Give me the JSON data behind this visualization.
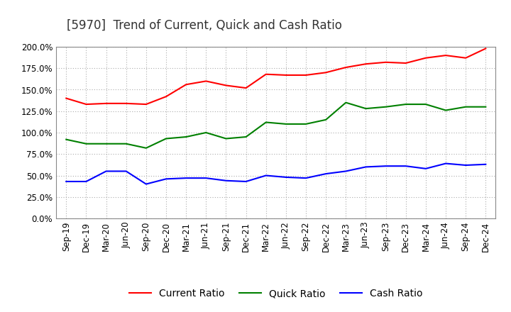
{
  "title": "[5970]  Trend of Current, Quick and Cash Ratio",
  "x_labels": [
    "Sep-19",
    "Dec-19",
    "Mar-20",
    "Jun-20",
    "Sep-20",
    "Dec-20",
    "Mar-21",
    "Jun-21",
    "Sep-21",
    "Dec-21",
    "Mar-22",
    "Jun-22",
    "Sep-22",
    "Dec-22",
    "Mar-23",
    "Jun-23",
    "Sep-23",
    "Dec-23",
    "Mar-24",
    "Jun-24",
    "Sep-24",
    "Dec-24"
  ],
  "current_ratio": [
    1.4,
    1.33,
    1.34,
    1.34,
    1.33,
    1.42,
    1.56,
    1.6,
    1.55,
    1.52,
    1.68,
    1.67,
    1.67,
    1.7,
    1.76,
    1.8,
    1.82,
    1.81,
    1.87,
    1.9,
    1.87,
    1.98
  ],
  "quick_ratio": [
    0.92,
    0.87,
    0.87,
    0.87,
    0.82,
    0.93,
    0.95,
    1.0,
    0.93,
    0.95,
    1.12,
    1.1,
    1.1,
    1.15,
    1.35,
    1.28,
    1.3,
    1.33,
    1.33,
    1.26,
    1.3,
    1.3
  ],
  "cash_ratio": [
    0.43,
    0.43,
    0.55,
    0.55,
    0.4,
    0.46,
    0.47,
    0.47,
    0.44,
    0.43,
    0.5,
    0.48,
    0.47,
    0.52,
    0.55,
    0.6,
    0.61,
    0.61,
    0.58,
    0.64,
    0.62,
    0.63
  ],
  "current_color": "#FF0000",
  "quick_color": "#008000",
  "cash_color": "#0000FF",
  "ylim": [
    0.0,
    2.0
  ],
  "yticks": [
    0.0,
    0.25,
    0.5,
    0.75,
    1.0,
    1.25,
    1.5,
    1.75,
    2.0
  ],
  "background_color": "#FFFFFF",
  "grid_color": "#AAAAAA",
  "title_fontsize": 12,
  "legend_fontsize": 10,
  "tick_fontsize": 8.5
}
